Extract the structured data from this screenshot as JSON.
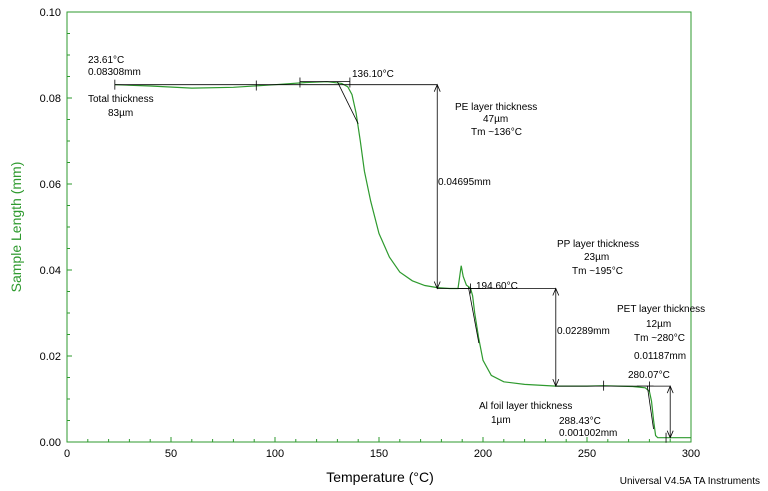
{
  "chart_data": {
    "type": "line",
    "xlabel": "Temperature (°C)",
    "ylabel": "Sample Length (mm)",
    "xlim": [
      0,
      300
    ],
    "ylim": [
      0,
      0.1
    ],
    "xticks": [
      "0",
      "50",
      "100",
      "150",
      "200",
      "250",
      "300"
    ],
    "yticks": [
      "0.00",
      "0.02",
      "0.04",
      "0.06",
      "0.08",
      "0.10"
    ],
    "grid": false,
    "series": [
      {
        "color": "#2e9a2e",
        "x": [
          23,
          40,
          60,
          80,
          100,
          115,
          125,
          132,
          135,
          137,
          139,
          141,
          143,
          146,
          150,
          155,
          160,
          166,
          172,
          178,
          184,
          188,
          189.5,
          190.5,
          192,
          194,
          195,
          196,
          198,
          200,
          204,
          210,
          220,
          235,
          250,
          258,
          265,
          272,
          278,
          280,
          281,
          282,
          283,
          284,
          290,
          300
        ],
        "y": [
          0.0831,
          0.0828,
          0.0823,
          0.0825,
          0.0831,
          0.0836,
          0.0838,
          0.0834,
          0.0826,
          0.0808,
          0.0765,
          0.07,
          0.063,
          0.056,
          0.0485,
          0.043,
          0.0395,
          0.0375,
          0.0364,
          0.0359,
          0.0357,
          0.0357,
          0.041,
          0.0385,
          0.0365,
          0.0358,
          0.034,
          0.03,
          0.024,
          0.019,
          0.0155,
          0.014,
          0.0134,
          0.013,
          0.013,
          0.0131,
          0.013,
          0.0129,
          0.0126,
          0.0118,
          0.0095,
          0.005,
          0.0015,
          0.001,
          0.001,
          0.001
        ]
      }
    ],
    "measurements": [
      {
        "x": 178,
        "y_top": 0.0831,
        "y_bottom": 0.0357,
        "label": "0.04695mm"
      },
      {
        "x": 235,
        "y_top": 0.0357,
        "y_bottom": 0.013,
        "label": "0.02289mm"
      },
      {
        "x": 290,
        "y_top": 0.013,
        "y_bottom": 0.001,
        "label": "0.01187mm"
      }
    ],
    "annotations": {
      "start_temp": "23.61°C",
      "start_len": "0.08308mm",
      "total_1": "Total thickness",
      "total_2": "83µm",
      "pe_onset": "136.10°C",
      "pe_1": "PE  layer thickness",
      "pe_2": "47µm",
      "pe_3": "Tm ~136°C",
      "pp_onset": "194.60°C",
      "pp_1": "PP layer thickness",
      "pp_2": "23µm",
      "pp_3": "Tm ~195°C",
      "pet_1": "PET layer thickness",
      "pet_2": "12µm",
      "pet_3": "Tm ~280°C",
      "pet_onset": "280.07°C",
      "al_1": "Al foil layer thickness",
      "al_2": "1µm",
      "end_temp": "288.43°C",
      "end_len": "0.001002mm"
    },
    "footer": "Universal V4.5A TA Instruments"
  }
}
